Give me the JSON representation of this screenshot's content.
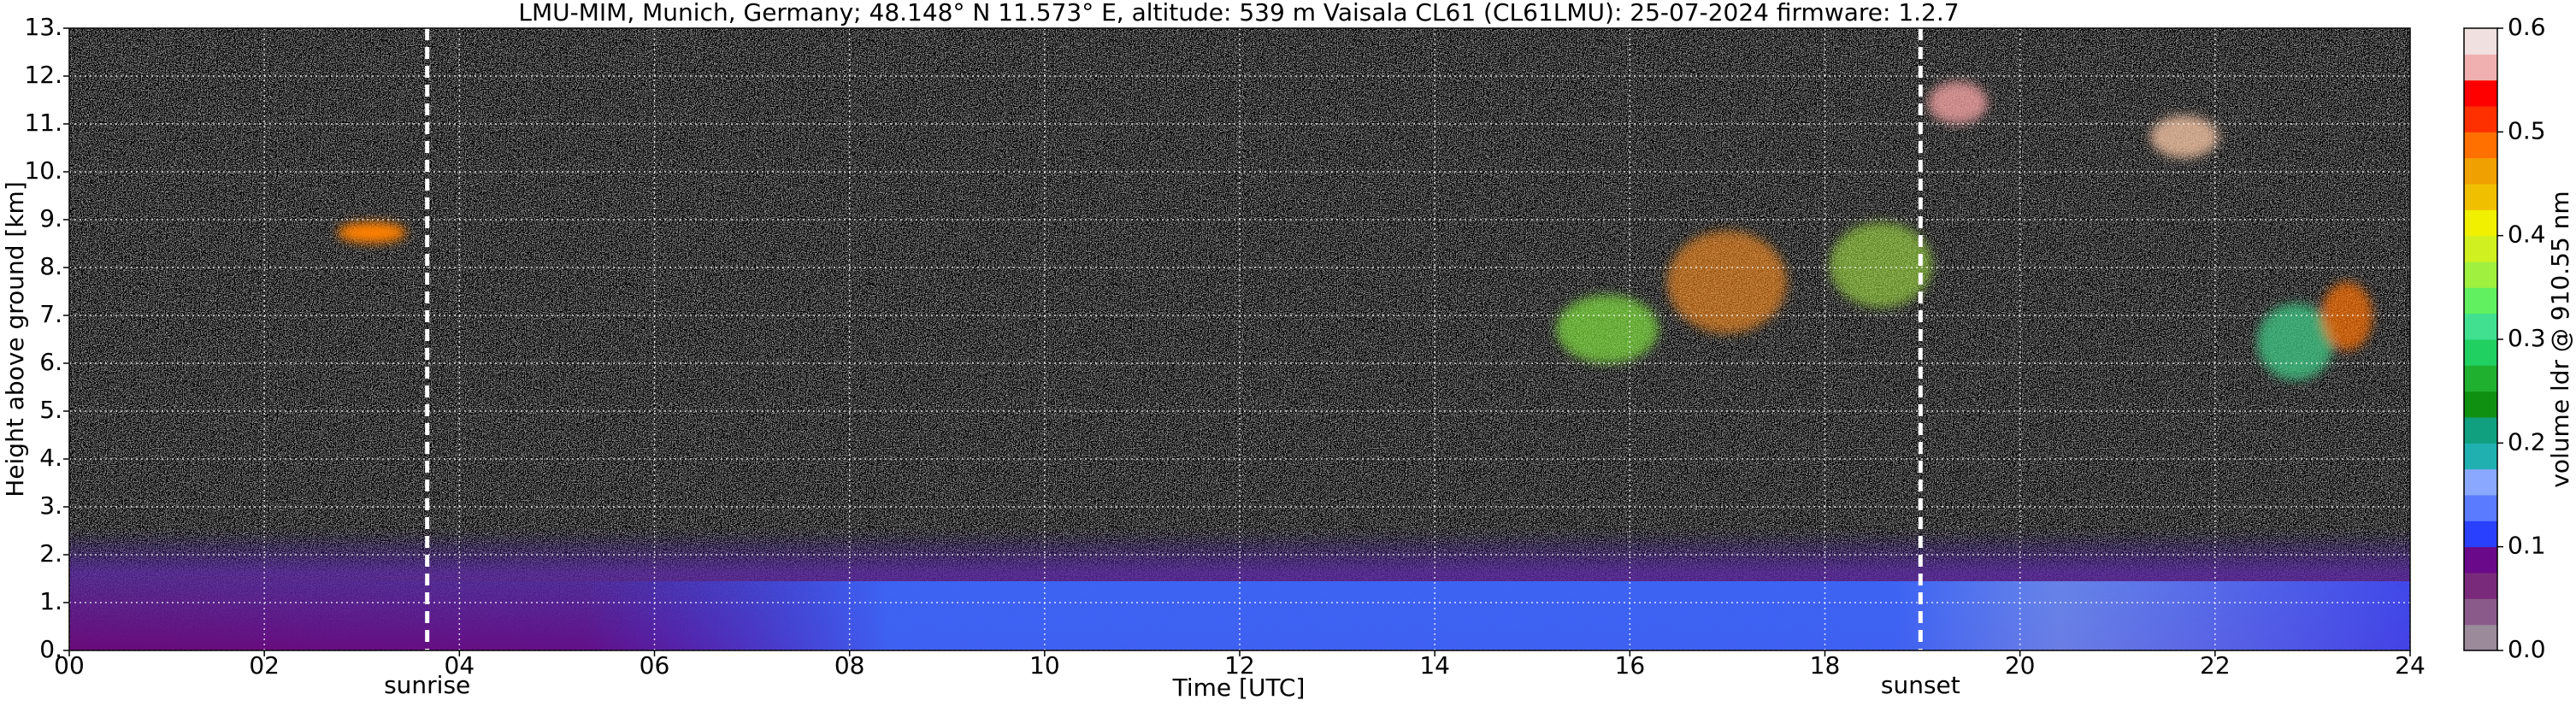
{
  "chart_data": {
    "type": "heatmap",
    "title": "LMU-MIM, Munich, Germany; 48.148° N 11.573° E, altitude: 539 m    Vaisala CL61 (CL61LMU): 25-07-2024    firmware: 1.2.7",
    "x_label": "Time [UTC]",
    "y_label": "Height above ground [km]",
    "colorbar_label": "volume ldr @ 910.55 nm",
    "xlim": [
      0,
      24
    ],
    "xticks": [
      {
        "value": 0,
        "label": "00"
      },
      {
        "value": 2,
        "label": "02"
      },
      {
        "value": 4,
        "label": "04"
      },
      {
        "value": 6,
        "label": "06"
      },
      {
        "value": 8,
        "label": "08"
      },
      10,
      12,
      14,
      16,
      18,
      20,
      22,
      24
    ],
    "ylim": [
      0,
      13
    ],
    "yticks": [
      {
        "value": 0,
        "label": "0."
      },
      {
        "value": 1,
        "label": "1."
      },
      {
        "value": 2,
        "label": "2."
      },
      {
        "value": 3,
        "label": "3."
      },
      {
        "value": 4,
        "label": "4."
      },
      {
        "value": 5,
        "label": "5."
      },
      {
        "value": 6,
        "label": "6."
      },
      {
        "value": 7,
        "label": "7."
      },
      {
        "value": 8,
        "label": "8."
      },
      {
        "value": 9,
        "label": "9."
      },
      {
        "value": 10,
        "label": "10."
      },
      {
        "value": 11,
        "label": "11."
      },
      {
        "value": 12,
        "label": "12."
      },
      {
        "value": 13,
        "label": "13."
      }
    ],
    "clim": [
      0,
      0.6
    ],
    "cticks": [
      {
        "value": 0,
        "label": "0.0"
      },
      0.1,
      0.2,
      0.3,
      0.4,
      0.5,
      0.6
    ],
    "colormap": [
      "#9a8a9a",
      "#8a5a8a",
      "#7a2a7a",
      "#6a0a8a",
      "#2a40ff",
      "#5a7aff",
      "#8aa8ff",
      "#20b0b0",
      "#10a080",
      "#109010",
      "#20b030",
      "#20d060",
      "#40e090",
      "#60f060",
      "#a0f040",
      "#d0f020",
      "#f0f000",
      "#f0c000",
      "#f0a000",
      "#ff7000",
      "#ff3000",
      "#ff0000",
      "#f0b0b0",
      "#f0e0e0"
    ],
    "grid": true,
    "annotations": [
      {
        "text": "sunrise",
        "x": 3.67
      },
      {
        "text": "sunset",
        "x": 18.98
      }
    ]
  }
}
